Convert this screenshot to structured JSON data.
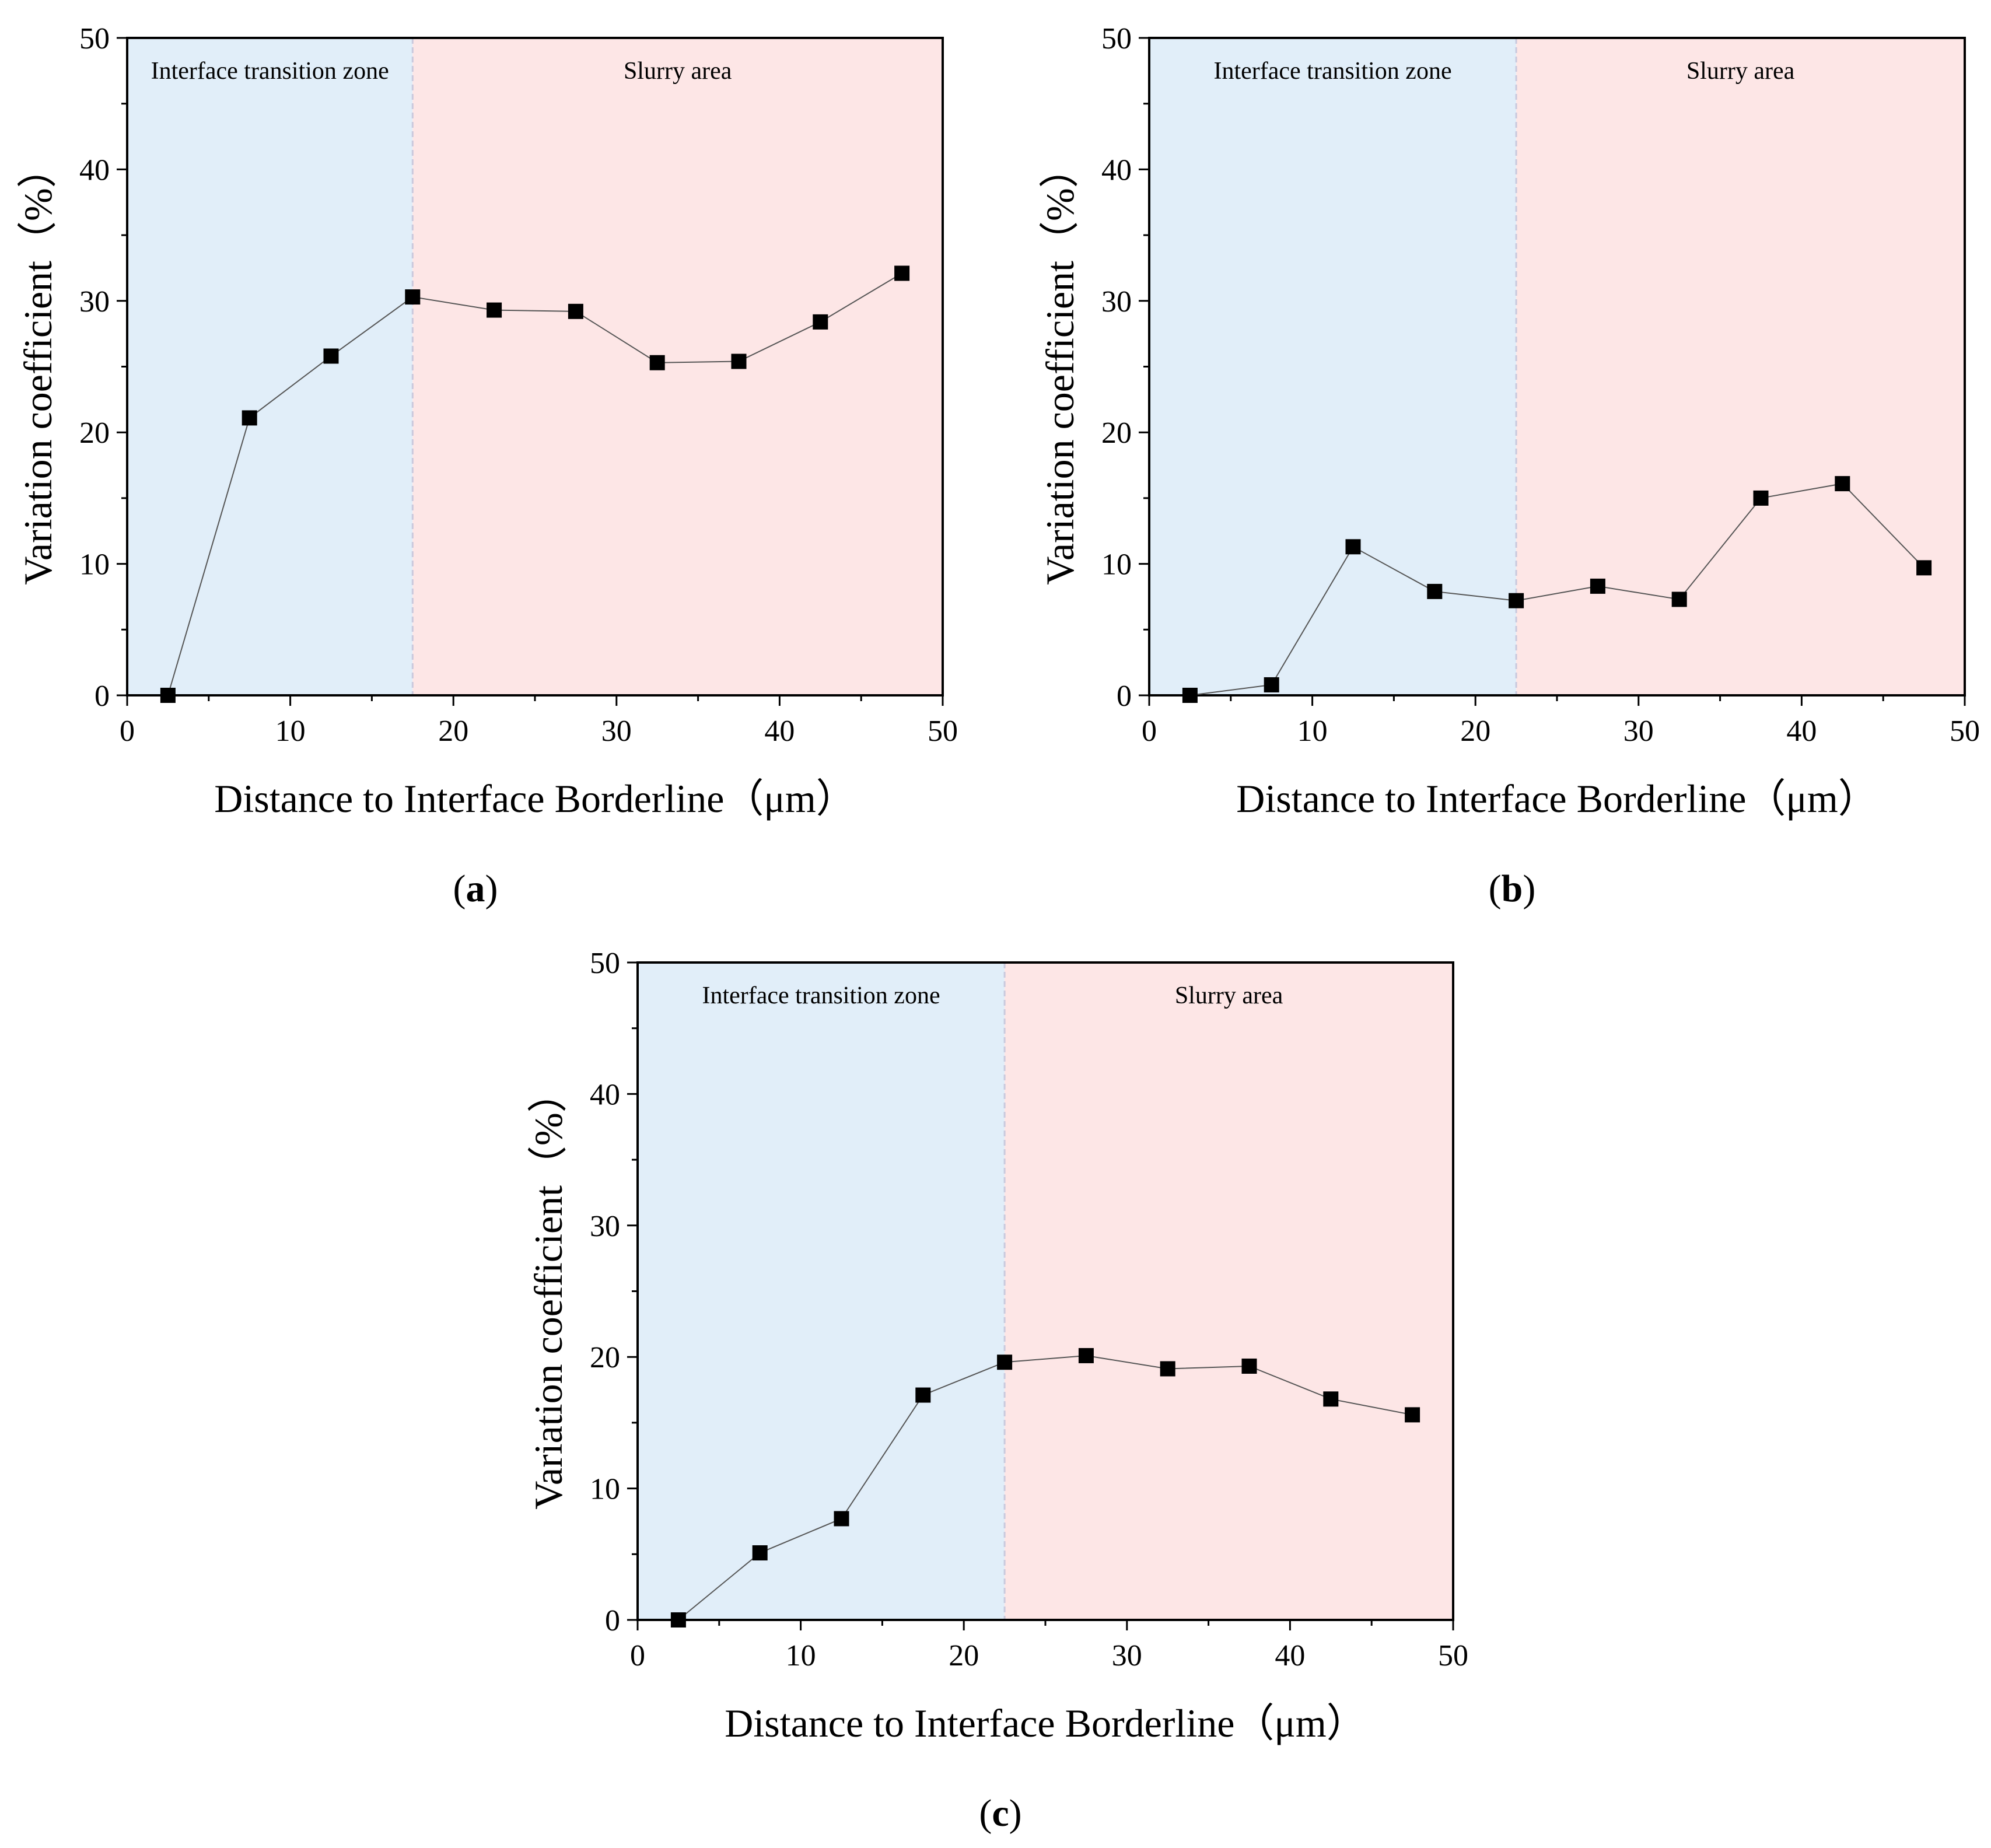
{
  "chart_data": [
    {
      "panel": "a",
      "type": "line",
      "xlabel": "Distance to Interface Borderline（μm）",
      "ylabel": "Variation coefficient（%）",
      "xlim": [
        0,
        50
      ],
      "ylim": [
        0,
        50
      ],
      "xticks": [
        0,
        10,
        20,
        30,
        40,
        50
      ],
      "yticks": [
        0,
        10,
        20,
        30,
        40,
        50
      ],
      "zone_boundary": 17.5,
      "zones": [
        {
          "label": "Interface transition zone",
          "from": 0,
          "to": 17.5,
          "color": "#e1eef9"
        },
        {
          "label": "Slurry area",
          "from": 17.5,
          "to": 50,
          "color": "#fde6e6"
        }
      ],
      "x": [
        2.5,
        7.5,
        12.5,
        17.5,
        22.5,
        27.5,
        32.5,
        37.5,
        42.5,
        47.5
      ],
      "y": [
        0,
        21.1,
        25.8,
        30.3,
        29.3,
        29.2,
        25.3,
        25.4,
        28.4,
        32.1
      ]
    },
    {
      "panel": "b",
      "type": "line",
      "xlabel": "Distance to Interface Borderline（μm）",
      "ylabel": "Variation coefficient（%）",
      "xlim": [
        0,
        50
      ],
      "ylim": [
        0,
        50
      ],
      "xticks": [
        0,
        10,
        20,
        30,
        40,
        50
      ],
      "yticks": [
        0,
        10,
        20,
        30,
        40,
        50
      ],
      "zone_boundary": 22.5,
      "zones": [
        {
          "label": "Interface transition zone",
          "from": 0,
          "to": 22.5,
          "color": "#e1eef9"
        },
        {
          "label": "Slurry area",
          "from": 22.5,
          "to": 50,
          "color": "#fde6e6"
        }
      ],
      "x": [
        2.5,
        7.5,
        12.5,
        17.5,
        22.5,
        27.5,
        32.5,
        37.5,
        42.5,
        47.5
      ],
      "y": [
        0,
        0.8,
        11.3,
        7.9,
        7.2,
        8.3,
        7.3,
        15.0,
        16.1,
        9.7
      ]
    },
    {
      "panel": "c",
      "type": "line",
      "xlabel": "Distance to Interface Borderline（μm）",
      "ylabel": "Variation coefficient（%）",
      "xlim": [
        0,
        50
      ],
      "ylim": [
        0,
        50
      ],
      "xticks": [
        0,
        10,
        20,
        30,
        40,
        50
      ],
      "yticks": [
        0,
        10,
        20,
        30,
        40,
        50
      ],
      "zone_boundary": 22.5,
      "zones": [
        {
          "label": "Interface transition zone",
          "from": 0,
          "to": 22.5,
          "color": "#e1eef9"
        },
        {
          "label": "Slurry area",
          "from": 22.5,
          "to": 50,
          "color": "#fde6e6"
        }
      ],
      "x": [
        2.5,
        7.5,
        12.5,
        17.5,
        22.5,
        27.5,
        32.5,
        37.5,
        42.5,
        47.5
      ],
      "y": [
        0,
        5.1,
        7.7,
        17.1,
        19.6,
        20.1,
        19.1,
        19.3,
        16.8,
        15.6
      ]
    }
  ],
  "panel_labels": [
    "(a)",
    "(b)",
    "(c)"
  ],
  "panel_letters": [
    "a",
    "b",
    "c"
  ],
  "colors": {
    "itz": "#e1eef9",
    "slurry": "#fde6e6",
    "boundary": "#c9c9dd",
    "marker": "#000000",
    "line": "#555555"
  }
}
